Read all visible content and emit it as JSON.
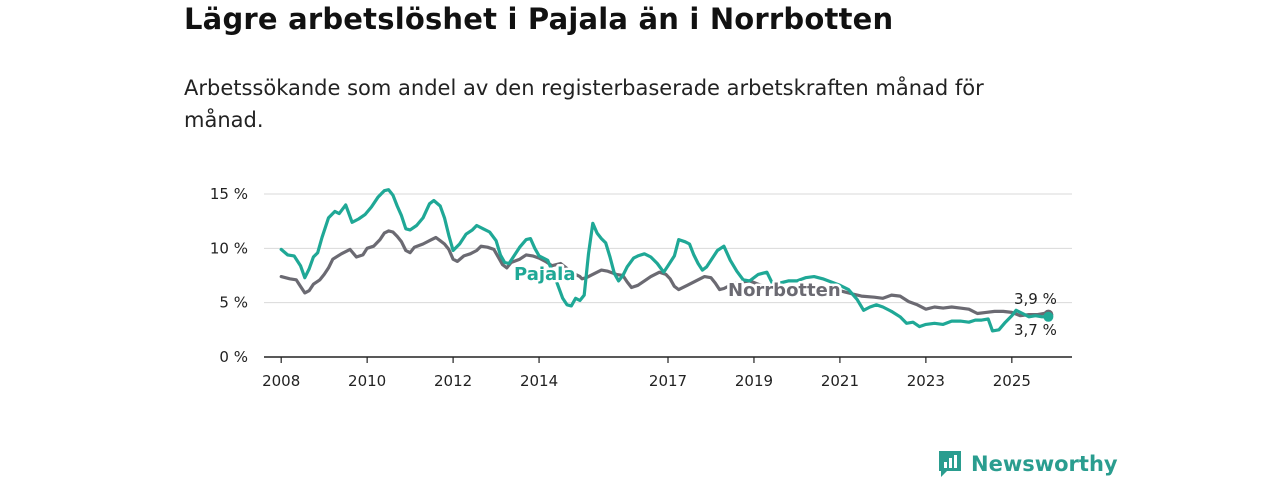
{
  "title": "Lägre arbetslöshet i Pajala än i Norrbotten",
  "subtitle": "Arbetssökande som andel av den registerbaserade arbetskraften månad för månad.",
  "brand": {
    "name": "Newsworthy",
    "icon": "newsworthy-logo-icon"
  },
  "colors": {
    "pajala": "#1fa896",
    "norrbotten": "#6b6a72",
    "grid": "#d9d9d9",
    "axis": "#222222"
  },
  "chart_data": {
    "type": "line",
    "title": "Lägre arbetslöshet i Pajala än i Norrbotten",
    "xlabel": "",
    "ylabel": "",
    "ylim": [
      0,
      15
    ],
    "xlim": [
      2007.6,
      2026.4
    ],
    "y_ticks": [
      {
        "value": 0,
        "label": "0 %"
      },
      {
        "value": 5,
        "label": "5 %"
      },
      {
        "value": 10,
        "label": "10 %"
      },
      {
        "value": 15,
        "label": "15 %"
      }
    ],
    "x_ticks": [
      {
        "value": 2008,
        "label": "2008"
      },
      {
        "value": 2010,
        "label": "2010"
      },
      {
        "value": 2012,
        "label": "2012"
      },
      {
        "value": 2014,
        "label": "2014"
      },
      {
        "value": 2017,
        "label": "2017"
      },
      {
        "value": 2019,
        "label": "2019"
      },
      {
        "value": 2021,
        "label": "2021"
      },
      {
        "value": 2023,
        "label": "2023"
      },
      {
        "value": 2025,
        "label": "2025"
      }
    ],
    "series": [
      {
        "name": "Norrbotten",
        "label": "Norrbotten",
        "end_label": "3,9 %",
        "points": [
          [
            2008.0,
            7.4
          ],
          [
            2008.2,
            7.2
          ],
          [
            2008.35,
            7.1
          ],
          [
            2008.45,
            6.5
          ],
          [
            2008.55,
            5.9
          ],
          [
            2008.65,
            6.1
          ],
          [
            2008.75,
            6.7
          ],
          [
            2008.9,
            7.1
          ],
          [
            2009.0,
            7.6
          ],
          [
            2009.1,
            8.2
          ],
          [
            2009.2,
            9.0
          ],
          [
            2009.4,
            9.5
          ],
          [
            2009.6,
            9.9
          ],
          [
            2009.75,
            9.2
          ],
          [
            2009.9,
            9.4
          ],
          [
            2010.0,
            10.0
          ],
          [
            2010.15,
            10.2
          ],
          [
            2010.3,
            10.8
          ],
          [
            2010.4,
            11.4
          ],
          [
            2010.5,
            11.6
          ],
          [
            2010.6,
            11.5
          ],
          [
            2010.7,
            11.1
          ],
          [
            2010.8,
            10.6
          ],
          [
            2010.9,
            9.8
          ],
          [
            2011.0,
            9.6
          ],
          [
            2011.1,
            10.1
          ],
          [
            2011.3,
            10.4
          ],
          [
            2011.5,
            10.8
          ],
          [
            2011.6,
            11.0
          ],
          [
            2011.7,
            10.7
          ],
          [
            2011.8,
            10.4
          ],
          [
            2011.9,
            9.9
          ],
          [
            2012.0,
            9.0
          ],
          [
            2012.1,
            8.8
          ],
          [
            2012.25,
            9.3
          ],
          [
            2012.4,
            9.5
          ],
          [
            2012.55,
            9.8
          ],
          [
            2012.65,
            10.2
          ],
          [
            2012.8,
            10.1
          ],
          [
            2012.95,
            9.9
          ],
          [
            2013.05,
            9.2
          ],
          [
            2013.15,
            8.5
          ],
          [
            2013.25,
            8.2
          ],
          [
            2013.35,
            8.7
          ],
          [
            2013.55,
            9.0
          ],
          [
            2013.7,
            9.4
          ],
          [
            2013.85,
            9.3
          ],
          [
            2014.0,
            9.1
          ],
          [
            2014.15,
            8.8
          ],
          [
            2014.3,
            8.4
          ],
          [
            2014.5,
            8.6
          ],
          [
            2014.7,
            8.0
          ],
          [
            2014.85,
            7.6
          ],
          [
            2014.95,
            7.4
          ],
          [
            2015.0,
            7.2
          ],
          [
            2015.1,
            7.3
          ],
          [
            2015.3,
            7.7
          ],
          [
            2015.45,
            8.0
          ],
          [
            2015.6,
            7.9
          ],
          [
            2015.8,
            7.6
          ],
          [
            2015.95,
            7.5
          ],
          [
            2016.05,
            6.9
          ],
          [
            2016.15,
            6.4
          ],
          [
            2016.3,
            6.6
          ],
          [
            2016.45,
            7.0
          ],
          [
            2016.6,
            7.4
          ],
          [
            2016.8,
            7.8
          ],
          [
            2016.95,
            7.6
          ],
          [
            2017.05,
            7.2
          ],
          [
            2017.15,
            6.5
          ],
          [
            2017.25,
            6.2
          ],
          [
            2017.45,
            6.6
          ],
          [
            2017.65,
            7.0
          ],
          [
            2017.85,
            7.4
          ],
          [
            2018.0,
            7.3
          ],
          [
            2018.1,
            6.8
          ],
          [
            2018.2,
            6.2
          ],
          [
            2018.3,
            6.3
          ],
          [
            2018.5,
            6.7
          ],
          [
            2018.7,
            6.9
          ],
          [
            2018.9,
            7.0
          ],
          [
            2019.1,
            6.7
          ],
          [
            2019.3,
            6.4
          ],
          [
            2019.6,
            6.3
          ],
          [
            2019.9,
            6.2
          ],
          [
            2020.2,
            6.1
          ],
          [
            2020.5,
            6.2
          ],
          [
            2020.8,
            6.3
          ],
          [
            2021.1,
            6.0
          ],
          [
            2021.3,
            5.8
          ],
          [
            2021.5,
            5.6
          ],
          [
            2021.8,
            5.5
          ],
          [
            2022.0,
            5.4
          ],
          [
            2022.2,
            5.7
          ],
          [
            2022.4,
            5.6
          ],
          [
            2022.6,
            5.1
          ],
          [
            2022.8,
            4.8
          ],
          [
            2023.0,
            4.4
          ],
          [
            2023.2,
            4.6
          ],
          [
            2023.4,
            4.5
          ],
          [
            2023.6,
            4.6
          ],
          [
            2023.8,
            4.5
          ],
          [
            2024.0,
            4.4
          ],
          [
            2024.2,
            4.0
          ],
          [
            2024.4,
            4.1
          ],
          [
            2024.6,
            4.2
          ],
          [
            2024.8,
            4.2
          ],
          [
            2025.0,
            4.1
          ],
          [
            2025.2,
            3.8
          ],
          [
            2025.4,
            3.9
          ],
          [
            2025.6,
            3.9
          ],
          [
            2025.75,
            4.0
          ],
          [
            2025.85,
            3.9
          ]
        ]
      },
      {
        "name": "Pajala",
        "label": "Pajala",
        "end_label": "3,7 %",
        "points": [
          [
            2008.0,
            9.9
          ],
          [
            2008.15,
            9.4
          ],
          [
            2008.3,
            9.3
          ],
          [
            2008.45,
            8.4
          ],
          [
            2008.55,
            7.3
          ],
          [
            2008.65,
            8.1
          ],
          [
            2008.75,
            9.2
          ],
          [
            2008.85,
            9.6
          ],
          [
            2008.95,
            11.0
          ],
          [
            2009.1,
            12.8
          ],
          [
            2009.25,
            13.4
          ],
          [
            2009.35,
            13.2
          ],
          [
            2009.5,
            14.0
          ],
          [
            2009.65,
            12.4
          ],
          [
            2009.8,
            12.7
          ],
          [
            2009.95,
            13.1
          ],
          [
            2010.1,
            13.8
          ],
          [
            2010.25,
            14.7
          ],
          [
            2010.4,
            15.3
          ],
          [
            2010.5,
            15.4
          ],
          [
            2010.6,
            14.9
          ],
          [
            2010.7,
            13.9
          ],
          [
            2010.8,
            13.0
          ],
          [
            2010.9,
            11.8
          ],
          [
            2011.0,
            11.7
          ],
          [
            2011.15,
            12.1
          ],
          [
            2011.3,
            12.8
          ],
          [
            2011.45,
            14.1
          ],
          [
            2011.55,
            14.4
          ],
          [
            2011.7,
            13.9
          ],
          [
            2011.8,
            12.8
          ],
          [
            2011.9,
            11.2
          ],
          [
            2012.0,
            9.8
          ],
          [
            2012.15,
            10.4
          ],
          [
            2012.3,
            11.3
          ],
          [
            2012.45,
            11.7
          ],
          [
            2012.55,
            12.1
          ],
          [
            2012.7,
            11.8
          ],
          [
            2012.85,
            11.5
          ],
          [
            2013.0,
            10.7
          ],
          [
            2013.1,
            9.4
          ],
          [
            2013.2,
            8.7
          ],
          [
            2013.3,
            8.6
          ],
          [
            2013.4,
            9.2
          ],
          [
            2013.55,
            10.1
          ],
          [
            2013.7,
            10.8
          ],
          [
            2013.8,
            10.9
          ],
          [
            2013.9,
            10.0
          ],
          [
            2014.0,
            9.3
          ],
          [
            2014.2,
            8.9
          ],
          [
            2014.4,
            7.0
          ],
          [
            2014.55,
            5.4
          ],
          [
            2014.65,
            4.8
          ],
          [
            2014.75,
            4.7
          ],
          [
            2014.85,
            5.4
          ],
          [
            2014.95,
            5.2
          ],
          [
            2015.05,
            5.7
          ],
          [
            2015.15,
            9.5
          ],
          [
            2015.25,
            12.3
          ],
          [
            2015.35,
            11.4
          ],
          [
            2015.45,
            10.9
          ],
          [
            2015.55,
            10.5
          ],
          [
            2015.65,
            9.2
          ],
          [
            2015.75,
            7.7
          ],
          [
            2015.85,
            7.0
          ],
          [
            2015.95,
            7.5
          ],
          [
            2016.05,
            8.3
          ],
          [
            2016.2,
            9.1
          ],
          [
            2016.3,
            9.3
          ],
          [
            2016.45,
            9.5
          ],
          [
            2016.6,
            9.2
          ],
          [
            2016.75,
            8.6
          ],
          [
            2016.9,
            7.8
          ],
          [
            2017.0,
            8.4
          ],
          [
            2017.15,
            9.3
          ],
          [
            2017.25,
            10.8
          ],
          [
            2017.4,
            10.6
          ],
          [
            2017.5,
            10.4
          ],
          [
            2017.6,
            9.4
          ],
          [
            2017.7,
            8.6
          ],
          [
            2017.8,
            8.0
          ],
          [
            2017.9,
            8.3
          ],
          [
            2018.0,
            8.9
          ],
          [
            2018.15,
            9.8
          ],
          [
            2018.3,
            10.2
          ],
          [
            2018.45,
            8.9
          ],
          [
            2018.6,
            7.9
          ],
          [
            2018.75,
            7.1
          ],
          [
            2018.9,
            7.0
          ],
          [
            2019.1,
            7.6
          ],
          [
            2019.3,
            7.8
          ],
          [
            2019.45,
            6.6
          ],
          [
            2019.6,
            6.8
          ],
          [
            2019.8,
            7.0
          ],
          [
            2020.0,
            7.0
          ],
          [
            2020.2,
            7.3
          ],
          [
            2020.4,
            7.4
          ],
          [
            2020.6,
            7.2
          ],
          [
            2020.8,
            6.9
          ],
          [
            2021.0,
            6.6
          ],
          [
            2021.2,
            6.2
          ],
          [
            2021.4,
            5.3
          ],
          [
            2021.55,
            4.3
          ],
          [
            2021.7,
            4.6
          ],
          [
            2021.85,
            4.8
          ],
          [
            2022.0,
            4.6
          ],
          [
            2022.2,
            4.2
          ],
          [
            2022.4,
            3.7
          ],
          [
            2022.55,
            3.1
          ],
          [
            2022.7,
            3.2
          ],
          [
            2022.85,
            2.8
          ],
          [
            2023.0,
            3.0
          ],
          [
            2023.2,
            3.1
          ],
          [
            2023.4,
            3.0
          ],
          [
            2023.6,
            3.3
          ],
          [
            2023.8,
            3.3
          ],
          [
            2024.0,
            3.2
          ],
          [
            2024.15,
            3.4
          ],
          [
            2024.3,
            3.4
          ],
          [
            2024.45,
            3.5
          ],
          [
            2024.55,
            2.4
          ],
          [
            2024.7,
            2.5
          ],
          [
            2024.85,
            3.2
          ],
          [
            2025.0,
            3.8
          ],
          [
            2025.1,
            4.3
          ],
          [
            2025.25,
            4.0
          ],
          [
            2025.4,
            3.7
          ],
          [
            2025.55,
            3.8
          ],
          [
            2025.7,
            3.7
          ],
          [
            2025.85,
            3.7
          ]
        ]
      }
    ]
  }
}
